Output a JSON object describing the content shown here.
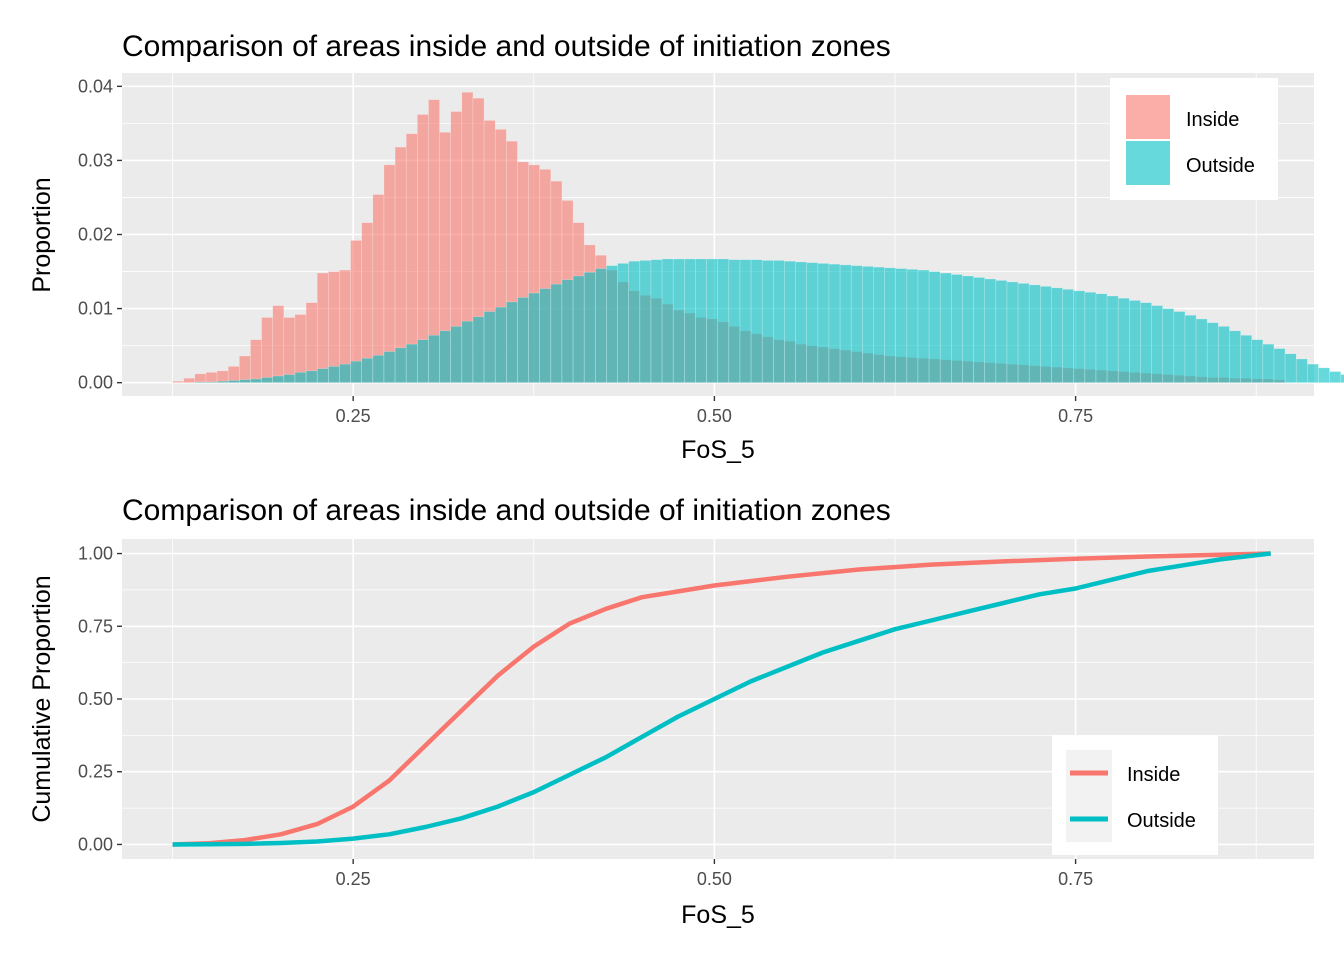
{
  "chart_data": [
    {
      "type": "bar",
      "title": "Comparison of areas inside and outside of initiation zones",
      "xlabel": "FoS_5",
      "ylabel": "Proportion",
      "xlim": [
        0.09,
        0.915
      ],
      "ylim": [
        -0.0018,
        0.0418
      ],
      "x_ticks": [
        0.25,
        0.5,
        0.75
      ],
      "x_tick_labels": [
        "0.25",
        "0.50",
        "0.75"
      ],
      "x_minor_ticks": [
        0.125,
        0.375,
        0.625,
        0.875
      ],
      "y_ticks": [
        0,
        0.01,
        0.02,
        0.03,
        0.04
      ],
      "y_tick_labels": [
        "0.00",
        "0.01",
        "0.02",
        "0.03",
        "0.04"
      ],
      "y_minor_ticks": [
        0.005,
        0.015,
        0.025,
        0.035
      ],
      "grid": true,
      "legend_position": "top-right",
      "bin_start": 0.125,
      "bin_width": 0.0077,
      "series": [
        {
          "name": "Inside",
          "color": "#F8766D",
          "values": [
            0.0002,
            0.0006,
            0.0012,
            0.0014,
            0.0016,
            0.0022,
            0.0036,
            0.0058,
            0.0088,
            0.0104,
            0.0088,
            0.0092,
            0.0108,
            0.0148,
            0.015,
            0.0152,
            0.0192,
            0.0216,
            0.0254,
            0.0294,
            0.0318,
            0.0336,
            0.0362,
            0.0382,
            0.0338,
            0.0366,
            0.0392,
            0.0384,
            0.0354,
            0.0342,
            0.0326,
            0.0298,
            0.0294,
            0.0288,
            0.0272,
            0.0246,
            0.0216,
            0.0186,
            0.0172,
            0.0152,
            0.0136,
            0.0124,
            0.0118,
            0.0114,
            0.0106,
            0.0098,
            0.0094,
            0.0088,
            0.0086,
            0.0082,
            0.0076,
            0.007,
            0.0066,
            0.0062,
            0.0058,
            0.0056,
            0.0052,
            0.005,
            0.0048,
            0.0046,
            0.0044,
            0.0042,
            0.004,
            0.0038,
            0.0036,
            0.0035,
            0.0034,
            0.0033,
            0.0032,
            0.0031,
            0.003,
            0.0029,
            0.0028,
            0.0027,
            0.0026,
            0.0025,
            0.0024,
            0.0023,
            0.0022,
            0.0021,
            0.002,
            0.0019,
            0.0018,
            0.0017,
            0.0016,
            0.0015,
            0.0014,
            0.0013,
            0.0012,
            0.0011,
            0.001,
            0.0009,
            0.0008,
            0.0007,
            0.0007,
            0.0006,
            0.0006,
            0.0005,
            0.0005,
            0.0004
          ]
        },
        {
          "name": "Outside",
          "color": "#00BFC4",
          "values": [
            0.0,
            0.0,
            0.0001,
            0.0001,
            0.0002,
            0.0003,
            0.0004,
            0.0005,
            0.0007,
            0.0009,
            0.0011,
            0.0014,
            0.0016,
            0.0019,
            0.0022,
            0.0025,
            0.0029,
            0.0033,
            0.0037,
            0.0042,
            0.0047,
            0.0052,
            0.0058,
            0.0064,
            0.007,
            0.0076,
            0.0083,
            0.0089,
            0.0096,
            0.0102,
            0.0109,
            0.0115,
            0.0121,
            0.0127,
            0.0133,
            0.0139,
            0.0144,
            0.0149,
            0.0154,
            0.0158,
            0.0161,
            0.0164,
            0.0165,
            0.0166,
            0.0167,
            0.0167,
            0.0167,
            0.0167,
            0.0167,
            0.0167,
            0.0166,
            0.0166,
            0.0166,
            0.0165,
            0.0165,
            0.0164,
            0.0163,
            0.0162,
            0.0161,
            0.016,
            0.0159,
            0.0158,
            0.0157,
            0.0156,
            0.0155,
            0.0154,
            0.0153,
            0.0152,
            0.015,
            0.0148,
            0.0146,
            0.0144,
            0.0142,
            0.014,
            0.0138,
            0.0136,
            0.0134,
            0.0132,
            0.013,
            0.0128,
            0.0126,
            0.0124,
            0.0122,
            0.012,
            0.0117,
            0.0114,
            0.0111,
            0.0108,
            0.0104,
            0.01,
            0.0096,
            0.0091,
            0.0086,
            0.0081,
            0.0076,
            0.007,
            0.0064,
            0.0058,
            0.0052,
            0.0046,
            0.0039,
            0.0032,
            0.0025,
            0.002,
            0.0015,
            0.0011,
            0.0008
          ]
        }
      ]
    },
    {
      "type": "line",
      "title": "Comparison of areas inside and outside of initiation zones",
      "xlabel": "FoS_5",
      "ylabel": "Cumulative Proportion",
      "xlim": [
        0.09,
        0.915
      ],
      "ylim": [
        -0.05,
        1.05
      ],
      "x_ticks": [
        0.25,
        0.5,
        0.75
      ],
      "x_tick_labels": [
        "0.25",
        "0.50",
        "0.75"
      ],
      "x_minor_ticks": [
        0.125,
        0.375,
        0.625,
        0.875
      ],
      "y_ticks": [
        0,
        0.25,
        0.5,
        0.75,
        1.0
      ],
      "y_tick_labels": [
        "0.00",
        "0.25",
        "0.50",
        "0.75",
        "1.00"
      ],
      "y_minor_ticks": [
        0.125,
        0.375,
        0.625,
        0.875
      ],
      "grid": true,
      "legend_position": "bottom-right",
      "series": [
        {
          "name": "Inside",
          "color": "#F8766D",
          "x": [
            0.125,
            0.15,
            0.175,
            0.2,
            0.225,
            0.25,
            0.275,
            0.3,
            0.325,
            0.35,
            0.375,
            0.4,
            0.425,
            0.45,
            0.475,
            0.5,
            0.55,
            0.6,
            0.65,
            0.7,
            0.75,
            0.8,
            0.85,
            0.885
          ],
          "y": [
            0.0,
            0.004,
            0.015,
            0.035,
            0.07,
            0.13,
            0.22,
            0.34,
            0.46,
            0.58,
            0.68,
            0.76,
            0.81,
            0.85,
            0.87,
            0.89,
            0.92,
            0.945,
            0.962,
            0.973,
            0.982,
            0.99,
            0.996,
            1.0
          ]
        },
        {
          "name": "Outside",
          "color": "#00BFC4",
          "x": [
            0.125,
            0.15,
            0.175,
            0.2,
            0.225,
            0.25,
            0.275,
            0.3,
            0.325,
            0.35,
            0.375,
            0.4,
            0.425,
            0.45,
            0.475,
            0.5,
            0.525,
            0.55,
            0.575,
            0.6,
            0.625,
            0.65,
            0.675,
            0.7,
            0.725,
            0.75,
            0.775,
            0.8,
            0.825,
            0.85,
            0.885
          ],
          "y": [
            0.0,
            0.001,
            0.002,
            0.005,
            0.01,
            0.02,
            0.035,
            0.06,
            0.09,
            0.13,
            0.18,
            0.24,
            0.3,
            0.37,
            0.44,
            0.5,
            0.56,
            0.61,
            0.66,
            0.7,
            0.74,
            0.77,
            0.8,
            0.83,
            0.86,
            0.88,
            0.91,
            0.94,
            0.96,
            0.98,
            1.0
          ]
        }
      ]
    }
  ]
}
